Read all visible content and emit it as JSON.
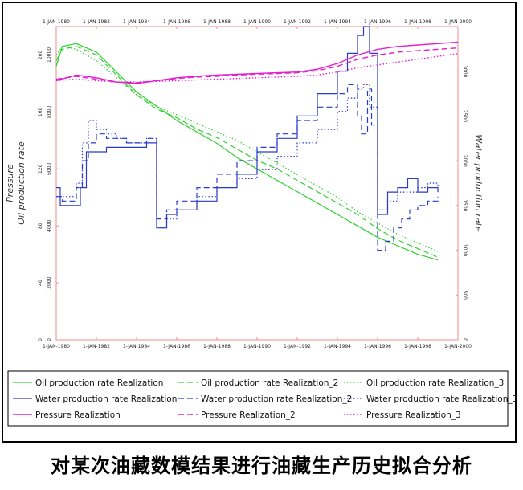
{
  "caption": "对某次油藏数模结果进行油藏生产历史拟合分析",
  "chart_data": {
    "type": "line",
    "x_domain": [
      1980,
      2000
    ],
    "x_ticks": [
      {
        "value": 1980,
        "label": "1-JAN-1980"
      },
      {
        "value": 1982,
        "label": "1-JAN-1982"
      },
      {
        "value": 1984,
        "label": "1-JAN-1984"
      },
      {
        "value": 1986,
        "label": "1-JAN-1986"
      },
      {
        "value": 1988,
        "label": "1-JAN-1988"
      },
      {
        "value": 1990,
        "label": "1-JAN-1990"
      },
      {
        "value": 1992,
        "label": "1-JAN-1992"
      },
      {
        "value": 1994,
        "label": "1-JAN-1994"
      },
      {
        "value": 1996,
        "label": "1-JAN-1996"
      },
      {
        "value": 1998,
        "label": "1-JAN-1998"
      },
      {
        "value": 2000,
        "label": "1-JAN-2000"
      }
    ],
    "axes": {
      "pressure": {
        "title": "Pressure",
        "range": [
          0,
          220
        ],
        "ticks": [
          0,
          40,
          80,
          120,
          160,
          200
        ]
      },
      "oil": {
        "title": "Oil production rate",
        "range": [
          0,
          11000
        ],
        "ticks": [
          0,
          2000,
          4000,
          6000,
          8000,
          10000
        ]
      },
      "water": {
        "title": "Water production rate",
        "range": [
          0,
          3500
        ],
        "ticks": [
          0,
          500,
          1000,
          1500,
          2000,
          2500,
          3000
        ]
      }
    },
    "colors": {
      "oil": "#2fd12f",
      "water": "#2a3bcc",
      "pressure": "#e020d0",
      "frame": "#f28a8a"
    },
    "series": [
      {
        "name": "Oil production rate Realization",
        "axis": "oil",
        "dash": "solid",
        "step": false,
        "x": [
          1980,
          1980.3,
          1981,
          1982,
          1983,
          1984,
          1985,
          1986,
          1987,
          1988,
          1989,
          1990,
          1991,
          1992,
          1993,
          1994,
          1995,
          1996,
          1997,
          1998,
          1999
        ],
        "y": [
          9600,
          10300,
          10400,
          10100,
          9400,
          8700,
          8200,
          7700,
          7300,
          6900,
          6400,
          6000,
          5600,
          5200,
          4800,
          4400,
          4000,
          3600,
          3300,
          3000,
          2800
        ]
      },
      {
        "name": "Oil production rate Realization_2",
        "axis": "oil",
        "dash": "dash",
        "step": false,
        "x": [
          1980,
          1980.3,
          1981,
          1982,
          1983,
          1984,
          1985,
          1986,
          1987,
          1988,
          1989,
          1990,
          1991,
          1992,
          1993,
          1994,
          1995,
          1996,
          1997,
          1998,
          1999
        ],
        "y": [
          9800,
          10200,
          10300,
          10000,
          9300,
          8600,
          8100,
          7800,
          7400,
          7100,
          6700,
          6300,
          6000,
          5600,
          5200,
          4800,
          4400,
          3900,
          3500,
          3200,
          2900
        ]
      },
      {
        "name": "Oil production rate Realization_3",
        "axis": "oil",
        "dash": "dot",
        "step": false,
        "x": [
          1980,
          1980.3,
          1981,
          1982,
          1983,
          1984,
          1985,
          1986,
          1987,
          1988,
          1989,
          1990,
          1991,
          1992,
          1993,
          1994,
          1995,
          1996,
          1997,
          1998,
          1999
        ],
        "y": [
          10000,
          10300,
          10200,
          9800,
          9200,
          8600,
          8200,
          7900,
          7600,
          7300,
          7000,
          6600,
          6200,
          5800,
          5400,
          5000,
          4500,
          4100,
          3700,
          3400,
          3100
        ]
      },
      {
        "name": "Water production rate Realization",
        "axis": "water",
        "dash": "solid",
        "step": true,
        "x": [
          1980,
          1980.2,
          1981,
          1981.2,
          1981.5,
          1982,
          1982.5,
          1983,
          1983.5,
          1984,
          1984.5,
          1984.9,
          1985,
          1985.5,
          1986,
          1987,
          1988,
          1989,
          1990,
          1991,
          1992,
          1993,
          1994,
          1994.5,
          1995,
          1995.3,
          1995.6,
          1996,
          1996.5,
          1997,
          1997.5,
          1998,
          1998.5,
          1999
        ],
        "y": [
          1700,
          1500,
          1500,
          1700,
          2100,
          2100,
          2150,
          2150,
          2150,
          2150,
          2200,
          2200,
          1250,
          1400,
          1450,
          1550,
          1700,
          1850,
          2100,
          2250,
          2500,
          2750,
          3000,
          3200,
          3400,
          3500,
          3200,
          1400,
          1650,
          1700,
          1800,
          1650,
          1700,
          1650
        ]
      },
      {
        "name": "Water production rate Realization_2",
        "axis": "water",
        "dash": "dash",
        "step": true,
        "x": [
          1980,
          1980.3,
          1981,
          1981.3,
          1981.6,
          1982,
          1982.5,
          1983,
          1983.5,
          1984,
          1984.5,
          1984.9,
          1985,
          1985.5,
          1986,
          1987,
          1988,
          1989,
          1990,
          1991,
          1992,
          1993,
          1994,
          1994.5,
          1995,
          1995.2,
          1995.5,
          1995.7,
          1996,
          1996.4,
          1996.8,
          1997.2,
          1997.6,
          1998,
          1998.5,
          1999
        ],
        "y": [
          1600,
          1550,
          1700,
          2000,
          2200,
          2300,
          2250,
          2250,
          2200,
          2200,
          2250,
          2250,
          1350,
          1450,
          1550,
          1700,
          1850,
          2000,
          2150,
          2300,
          2450,
          2600,
          2750,
          2850,
          2500,
          2300,
          2800,
          2400,
          1000,
          1100,
          1250,
          1350,
          1450,
          1500,
          1550,
          1600
        ]
      },
      {
        "name": "Water production rate Realization_3",
        "axis": "water",
        "dash": "dot",
        "step": true,
        "x": [
          1980,
          1980.4,
          1981,
          1981.3,
          1981.6,
          1982,
          1982.5,
          1983,
          1983.5,
          1984,
          1984.5,
          1984.9,
          1985,
          1985.5,
          1986,
          1987,
          1988,
          1989,
          1990,
          1991,
          1992,
          1993,
          1994,
          1994.5,
          1995,
          1995.3,
          1995.6,
          1996,
          1996.5,
          1997,
          1997.5,
          1998,
          1998.5,
          1999
        ],
        "y": [
          1600,
          1600,
          1750,
          2200,
          2450,
          2350,
          2300,
          2250,
          2200,
          2200,
          2250,
          2250,
          1250,
          1350,
          1450,
          1600,
          1700,
          1800,
          1900,
          2050,
          2200,
          2350,
          2550,
          2700,
          2800,
          2850,
          2600,
          1450,
          1550,
          1650,
          1650,
          1700,
          1750,
          1700
        ]
      },
      {
        "name": "Pressure Realization",
        "axis": "pressure",
        "dash": "solid",
        "step": false,
        "x": [
          1980,
          1981,
          1982,
          1983,
          1984,
          1985,
          1986,
          1987,
          1988,
          1989,
          1990,
          1991,
          1992,
          1993,
          1994,
          1995,
          1996,
          1997,
          1998,
          1999,
          2000
        ],
        "y": [
          182,
          186,
          184,
          181,
          180,
          182,
          184,
          185,
          186,
          186.5,
          187,
          187.5,
          188,
          190,
          194,
          200,
          204,
          206,
          207,
          208,
          209
        ]
      },
      {
        "name": "Pressure Realization_2",
        "axis": "pressure",
        "dash": "dash",
        "step": false,
        "x": [
          1980,
          1981,
          1982,
          1983,
          1984,
          1985,
          1986,
          1987,
          1988,
          1989,
          1990,
          1991,
          1992,
          1993,
          1994,
          1995,
          1996,
          1997,
          1998,
          1999,
          2000
        ],
        "y": [
          183,
          185,
          183,
          181,
          180.5,
          182,
          183.5,
          184.5,
          185,
          186,
          186.5,
          187,
          187.5,
          189,
          192,
          197,
          200,
          202,
          203,
          204,
          205
        ]
      },
      {
        "name": "Pressure Realization_3",
        "axis": "pressure",
        "dash": "dot",
        "step": false,
        "x": [
          1980,
          1981,
          1982,
          1983,
          1984,
          1985,
          1986,
          1987,
          1988,
          1989,
          1990,
          1991,
          1992,
          1993,
          1994,
          1995,
          1996,
          1997,
          1998,
          1999,
          2000
        ],
        "y": [
          182,
          183,
          182,
          181,
          181,
          181.5,
          182,
          182.5,
          183,
          183.5,
          184,
          184.5,
          185,
          186,
          188,
          191,
          193,
          195,
          197,
          199,
          201
        ]
      }
    ]
  }
}
